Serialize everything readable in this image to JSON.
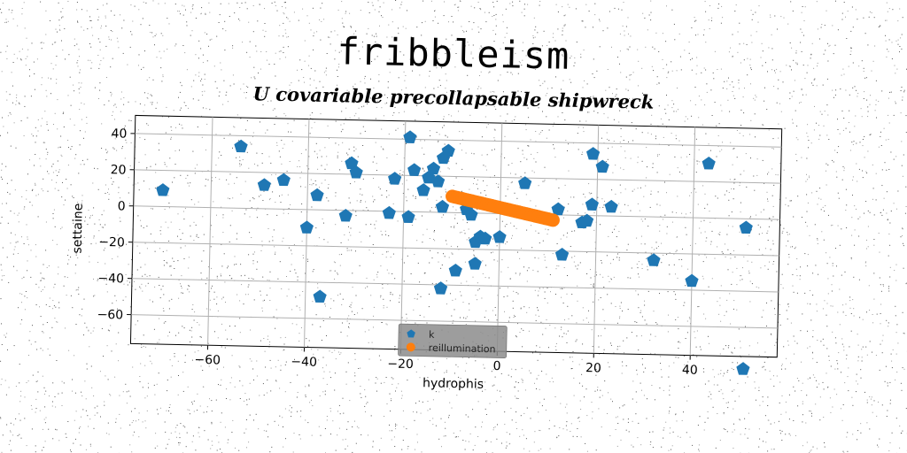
{
  "chart_data": {
    "type": "scatter",
    "title": "fribbleism",
    "subtitle": "U covariable precollapsable shipwreck",
    "xlabel": "hydrophis",
    "ylabel": "settaine",
    "xlim": [
      -76,
      58
    ],
    "ylim": [
      -76,
      50
    ],
    "xticks": [
      -60,
      -40,
      -20,
      0,
      20,
      40
    ],
    "yticks": [
      -60,
      -40,
      -20,
      0,
      20,
      40
    ],
    "grid": true,
    "legend_position": "lower-center",
    "colors": {
      "k": "#1f77b4",
      "reillumination": "#ff7f0e",
      "grid": "#b0b0b0",
      "legend_bg": "#8c8c8c"
    },
    "series": [
      {
        "name": "k",
        "marker": "pentagon",
        "points": [
          [
            -70,
            9
          ],
          [
            -54,
            34
          ],
          [
            -49,
            13
          ],
          [
            -45,
            16
          ],
          [
            -40,
            -10
          ],
          [
            -38,
            8
          ],
          [
            -37,
            -48
          ],
          [
            -32,
            -3
          ],
          [
            -31,
            26
          ],
          [
            -30,
            21
          ],
          [
            -23,
            -1
          ],
          [
            -22,
            18
          ],
          [
            -19,
            41
          ],
          [
            -19,
            -3
          ],
          [
            -18,
            23
          ],
          [
            -16,
            12
          ],
          [
            -15,
            19
          ],
          [
            -14,
            24
          ],
          [
            -13,
            17
          ],
          [
            -12,
            3
          ],
          [
            -12,
            30
          ],
          [
            -11,
            34
          ],
          [
            -12,
            -42
          ],
          [
            -9,
            -32
          ],
          [
            -7,
            2
          ],
          [
            -6,
            -1
          ],
          [
            -5,
            -28
          ],
          [
            -5,
            -16
          ],
          [
            -4,
            -13
          ],
          [
            -3,
            -14
          ],
          [
            0,
            -13
          ],
          [
            5,
            17
          ],
          [
            12,
            3
          ],
          [
            13,
            -22
          ],
          [
            17,
            -4
          ],
          [
            18,
            -3
          ],
          [
            19,
            34
          ],
          [
            19,
            6
          ],
          [
            21,
            27
          ],
          [
            23,
            5
          ],
          [
            32,
            -24
          ],
          [
            40,
            -35
          ],
          [
            43,
            30
          ],
          [
            51,
            -5
          ],
          [
            51,
            -83
          ]
        ]
      },
      {
        "name": "reillumination",
        "marker": "circle",
        "x_range": [
          -10,
          11
        ],
        "y_range": [
          9,
          -3
        ],
        "n_points": 42
      }
    ]
  }
}
